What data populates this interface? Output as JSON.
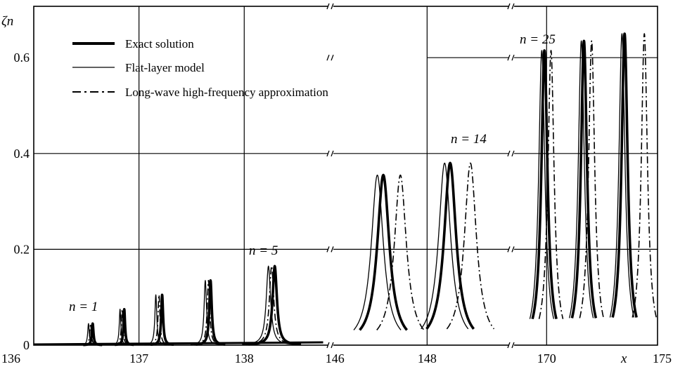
{
  "chart_data": {
    "type": "line",
    "ylabel": "ζn",
    "xlabel": "x",
    "ylim": [
      0,
      0.7
    ],
    "y_ticks": [
      "0",
      "0.2",
      "0.4",
      "0.6"
    ],
    "y_tick_values": [
      0,
      0.2,
      0.4,
      0.6
    ],
    "x_ticks": [
      "136",
      "137",
      "138",
      "146",
      "148",
      "170",
      "175"
    ],
    "grid": true,
    "legend_position": "top-left",
    "legend": [
      {
        "label": "Exact solution",
        "style": "thick"
      },
      {
        "label": "Flat-layer model",
        "style": "thin"
      },
      {
        "label": "Long-wave high-frequency approximation",
        "style": "dash-dot"
      }
    ],
    "annotations": [
      "n = 1",
      "n = 5",
      "n = 14",
      "n = 25"
    ],
    "panels": [
      {
        "name": "panel-1",
        "xlim": [
          136,
          138.8
        ],
        "series": [
          {
            "name": "Exact solution",
            "peaks": [
              {
                "x": 136.56,
                "y": 0.045,
                "w": 0.009
              },
              {
                "x": 136.86,
                "y": 0.075,
                "w": 0.009
              },
              {
                "x": 137.22,
                "y": 0.105,
                "w": 0.011
              },
              {
                "x": 137.68,
                "y": 0.135,
                "w": 0.014
              },
              {
                "x": 138.29,
                "y": 0.165,
                "w": 0.025
              }
            ]
          },
          {
            "name": "Flat-layer model",
            "peaks": [
              {
                "x": 136.52,
                "y": 0.045,
                "w": 0.009
              },
              {
                "x": 136.82,
                "y": 0.075,
                "w": 0.009
              },
              {
                "x": 137.16,
                "y": 0.105,
                "w": 0.011
              },
              {
                "x": 137.63,
                "y": 0.135,
                "w": 0.014
              },
              {
                "x": 138.23,
                "y": 0.165,
                "w": 0.025
              }
            ]
          },
          {
            "name": "Long-wave high-frequency approximation",
            "peaks": [
              {
                "x": 136.54,
                "y": 0.045,
                "w": 0.009
              },
              {
                "x": 136.84,
                "y": 0.075,
                "w": 0.009
              },
              {
                "x": 137.19,
                "y": 0.105,
                "w": 0.011
              },
              {
                "x": 137.66,
                "y": 0.135,
                "w": 0.014
              },
              {
                "x": 138.26,
                "y": 0.165,
                "w": 0.025
              }
            ]
          }
        ]
      },
      {
        "name": "panel-2",
        "xlim": [
          145.95,
          149.75
        ],
        "series": [
          {
            "name": "Exact solution",
            "peaks": [
              {
                "x": 147.05,
                "y": 0.355,
                "w": 0.16
              },
              {
                "x": 148.5,
                "y": 0.38,
                "w": 0.16
              }
            ]
          },
          {
            "name": "Flat-layer model",
            "peaks": [
              {
                "x": 146.92,
                "y": 0.355,
                "w": 0.16
              },
              {
                "x": 148.38,
                "y": 0.38,
                "w": 0.16
              }
            ]
          },
          {
            "name": "Long-wave high-frequency approximation",
            "peaks": [
              {
                "x": 147.42,
                "y": 0.355,
                "w": 0.16
              },
              {
                "x": 148.94,
                "y": 0.38,
                "w": 0.16
              }
            ]
          }
        ]
      },
      {
        "name": "panel-3",
        "xlim": [
          168.55,
          175.05
        ],
        "series": [
          {
            "name": "Exact solution",
            "peaks": [
              {
                "x": 169.9,
                "y": 0.615,
                "w": 0.17
              },
              {
                "x": 171.7,
                "y": 0.635,
                "w": 0.17
              },
              {
                "x": 173.55,
                "y": 0.65,
                "w": 0.17
              }
            ]
          },
          {
            "name": "Flat-layer model",
            "peaks": [
              {
                "x": 169.78,
                "y": 0.615,
                "w": 0.17
              },
              {
                "x": 171.58,
                "y": 0.635,
                "w": 0.17
              },
              {
                "x": 173.43,
                "y": 0.65,
                "w": 0.17
              }
            ]
          },
          {
            "name": "Long-wave high-frequency approximation",
            "peaks": [
              {
                "x": 170.2,
                "y": 0.615,
                "w": 0.17
              },
              {
                "x": 172.05,
                "y": 0.635,
                "w": 0.17
              },
              {
                "x": 174.45,
                "y": 0.65,
                "w": 0.17
              }
            ]
          }
        ]
      }
    ]
  }
}
